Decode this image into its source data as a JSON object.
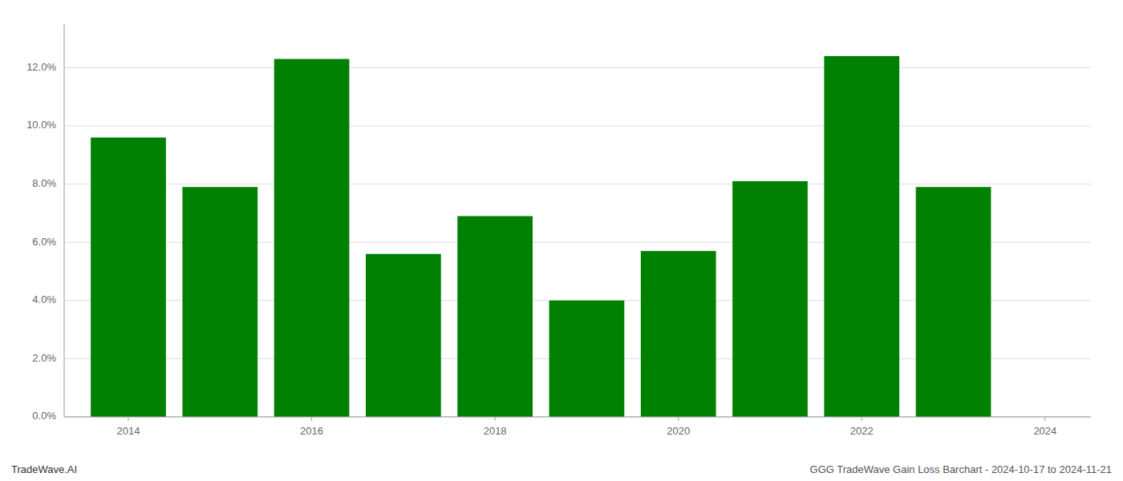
{
  "chart_data": {
    "type": "bar",
    "x": [
      2014,
      2015,
      2016,
      2017,
      2018,
      2019,
      2020,
      2021,
      2022,
      2023
    ],
    "values": [
      0.096,
      0.079,
      0.123,
      0.056,
      0.069,
      0.04,
      0.057,
      0.081,
      0.124,
      0.079
    ],
    "color": "#008000",
    "xlim": [
      2013.3,
      2024.5
    ],
    "xticks": [
      2014,
      2016,
      2018,
      2020,
      2022,
      2024
    ],
    "ylim": [
      0,
      0.135
    ],
    "yticks": [
      {
        "value": 0.0,
        "label": "0.0%"
      },
      {
        "value": 0.02,
        "label": "2.0%"
      },
      {
        "value": 0.04,
        "label": "4.0%"
      },
      {
        "value": 0.06,
        "label": "6.0%"
      },
      {
        "value": 0.08,
        "label": "8.0%"
      },
      {
        "value": 0.1,
        "label": "10.0%"
      },
      {
        "value": 0.12,
        "label": "12.0%"
      }
    ],
    "grid": true,
    "annotations": [
      "TradeWave.AI",
      "GGG TradeWave Gain Loss Barchart - 2024-10-17 to 2024-11-21"
    ]
  }
}
